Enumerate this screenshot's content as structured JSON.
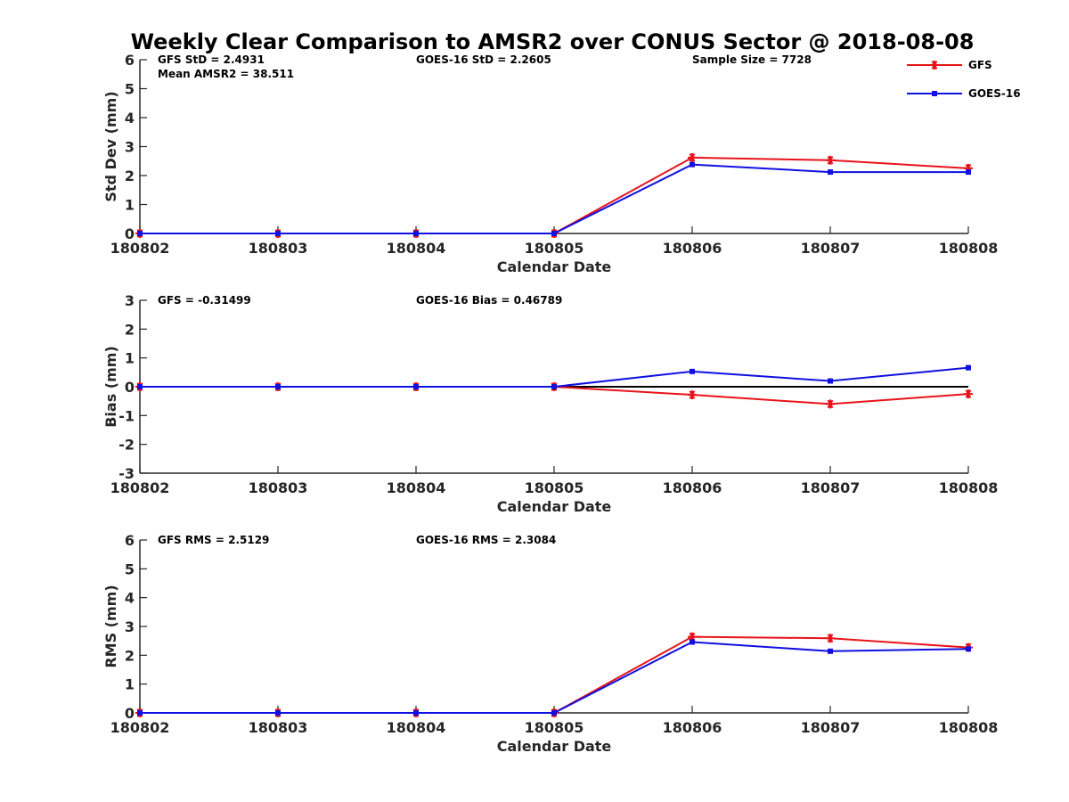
{
  "chart_data": {
    "type": "line",
    "title": "Weekly Clear Comparison to AMSR2 over CONUS Sector @ 2018-08-08",
    "colors": {
      "GFS": "#e8131a",
      "GOES-16": "#1010e0",
      "zero_line": "#000000"
    },
    "legend": {
      "placement": "top-right",
      "entries": [
        {
          "name": "GFS",
          "marker": "asterisk",
          "color": "#e8131a"
        },
        {
          "name": "GOES-16",
          "marker": "square",
          "color": "#1010e0"
        }
      ]
    },
    "panels": [
      {
        "name": "stddev",
        "ylabel": "Std Dev (mm)",
        "xlabel": "Calendar Date",
        "categories": [
          "180802",
          "180803",
          "180804",
          "180805",
          "180806",
          "180807",
          "180808"
        ],
        "ylim": [
          0,
          6
        ],
        "yticks": [
          0,
          1,
          2,
          3,
          4,
          5,
          6
        ],
        "zero_line": false,
        "annotations": [
          {
            "text": "GFS StD = 2.4931",
            "position": "top-left"
          },
          {
            "text": "Mean AMSR2 = 38.511",
            "position": "top-left-second-line"
          },
          {
            "text": "GOES-16 StD = 2.2605",
            "position": "top-center"
          },
          {
            "text": "Sample Size = 7728",
            "position": "top-right"
          }
        ],
        "series": [
          {
            "name": "GFS",
            "values": [
              0,
              0,
              0,
              0,
              2.62,
              2.53,
              2.25
            ]
          },
          {
            "name": "GOES-16",
            "values": [
              0,
              0,
              0,
              0,
              2.38,
              2.12,
              2.12
            ]
          }
        ]
      },
      {
        "name": "bias",
        "ylabel": "Bias (mm)",
        "xlabel": "Calendar Date",
        "categories": [
          "180802",
          "180803",
          "180804",
          "180805",
          "180806",
          "180807",
          "180808"
        ],
        "ylim": [
          -3,
          3
        ],
        "yticks": [
          -3,
          -2,
          -1,
          0,
          1,
          2,
          3
        ],
        "zero_line": true,
        "annotations": [
          {
            "text": "GFS = -0.31499",
            "position": "top-left"
          },
          {
            "text": "GOES-16 Bias  = 0.46789",
            "position": "top-center"
          }
        ],
        "series": [
          {
            "name": "GFS",
            "values": [
              0,
              0,
              0,
              0,
              -0.28,
              -0.6,
              -0.25
            ]
          },
          {
            "name": "GOES-16",
            "values": [
              0,
              0,
              0,
              0,
              0.53,
              0.2,
              0.66
            ]
          }
        ]
      },
      {
        "name": "rms",
        "ylabel": "RMS (mm)",
        "xlabel": "Calendar Date",
        "categories": [
          "180802",
          "180803",
          "180804",
          "180805",
          "180806",
          "180807",
          "180808"
        ],
        "ylim": [
          0,
          6
        ],
        "yticks": [
          0,
          1,
          2,
          3,
          4,
          5,
          6
        ],
        "zero_line": false,
        "annotations": [
          {
            "text": "GFS RMS = 2.5129",
            "position": "top-left"
          },
          {
            "text": "GOES-16 RMS = 2.3084",
            "position": "top-center"
          }
        ],
        "series": [
          {
            "name": "GFS",
            "values": [
              0,
              0,
              0,
              0,
              2.64,
              2.59,
              2.27
            ]
          },
          {
            "name": "GOES-16",
            "values": [
              0,
              0,
              0,
              0,
              2.46,
              2.14,
              2.22
            ]
          }
        ]
      }
    ]
  }
}
